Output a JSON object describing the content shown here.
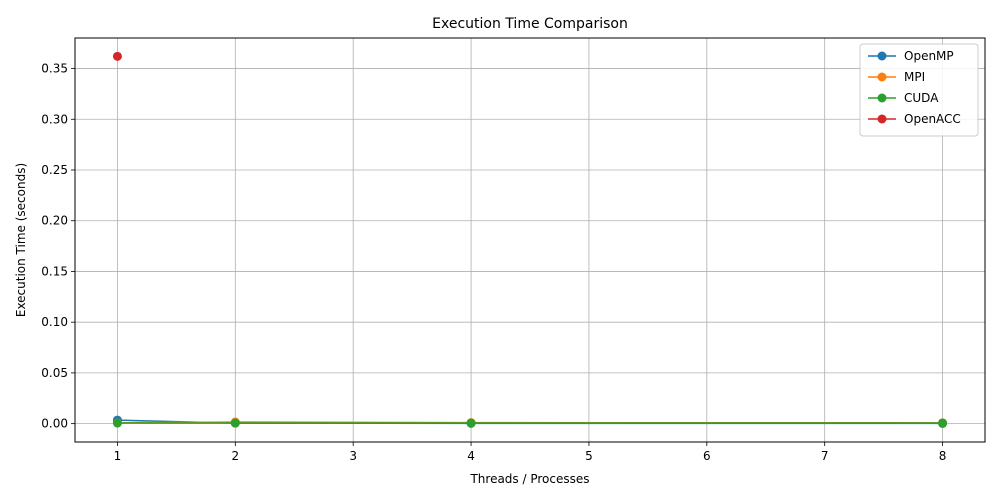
{
  "chart_data": {
    "type": "line",
    "title": "Execution Time Comparison",
    "xlabel": "Threads / Processes",
    "ylabel": "Execution Time (seconds)",
    "xlim": [
      0.64,
      8.36
    ],
    "ylim": [
      -0.0181,
      0.3801
    ],
    "x_ticks": [
      1,
      2,
      3,
      4,
      5,
      6,
      7,
      8
    ],
    "x_tick_labels": [
      "1",
      "2",
      "3",
      "4",
      "5",
      "6",
      "7",
      "8"
    ],
    "y_ticks": [
      0.0,
      0.05,
      0.1,
      0.15,
      0.2,
      0.25,
      0.3,
      0.35
    ],
    "y_tick_labels": [
      "0.00",
      "0.05",
      "0.10",
      "0.15",
      "0.20",
      "0.25",
      "0.30",
      "0.35"
    ],
    "grid": true,
    "legend_position": "top-right",
    "series": [
      {
        "name": "OpenMP",
        "color": "#1f77b4",
        "x": [
          1,
          2,
          4,
          8
        ],
        "y": [
          0.0035,
          0.0005,
          0.0003,
          0.0002
        ]
      },
      {
        "name": "MPI",
        "color": "#ff7f0e",
        "x": [
          1,
          2,
          4,
          8
        ],
        "y": [
          0.0008,
          0.0016,
          0.001,
          0.0008
        ]
      },
      {
        "name": "CUDA",
        "color": "#2ca02c",
        "x": [
          1,
          2,
          4,
          8
        ],
        "y": [
          0.0006,
          0.0006,
          0.0006,
          0.0006
        ]
      },
      {
        "name": "OpenACC",
        "color": "#d62728",
        "x": [
          1
        ],
        "y": [
          0.362
        ]
      }
    ]
  }
}
